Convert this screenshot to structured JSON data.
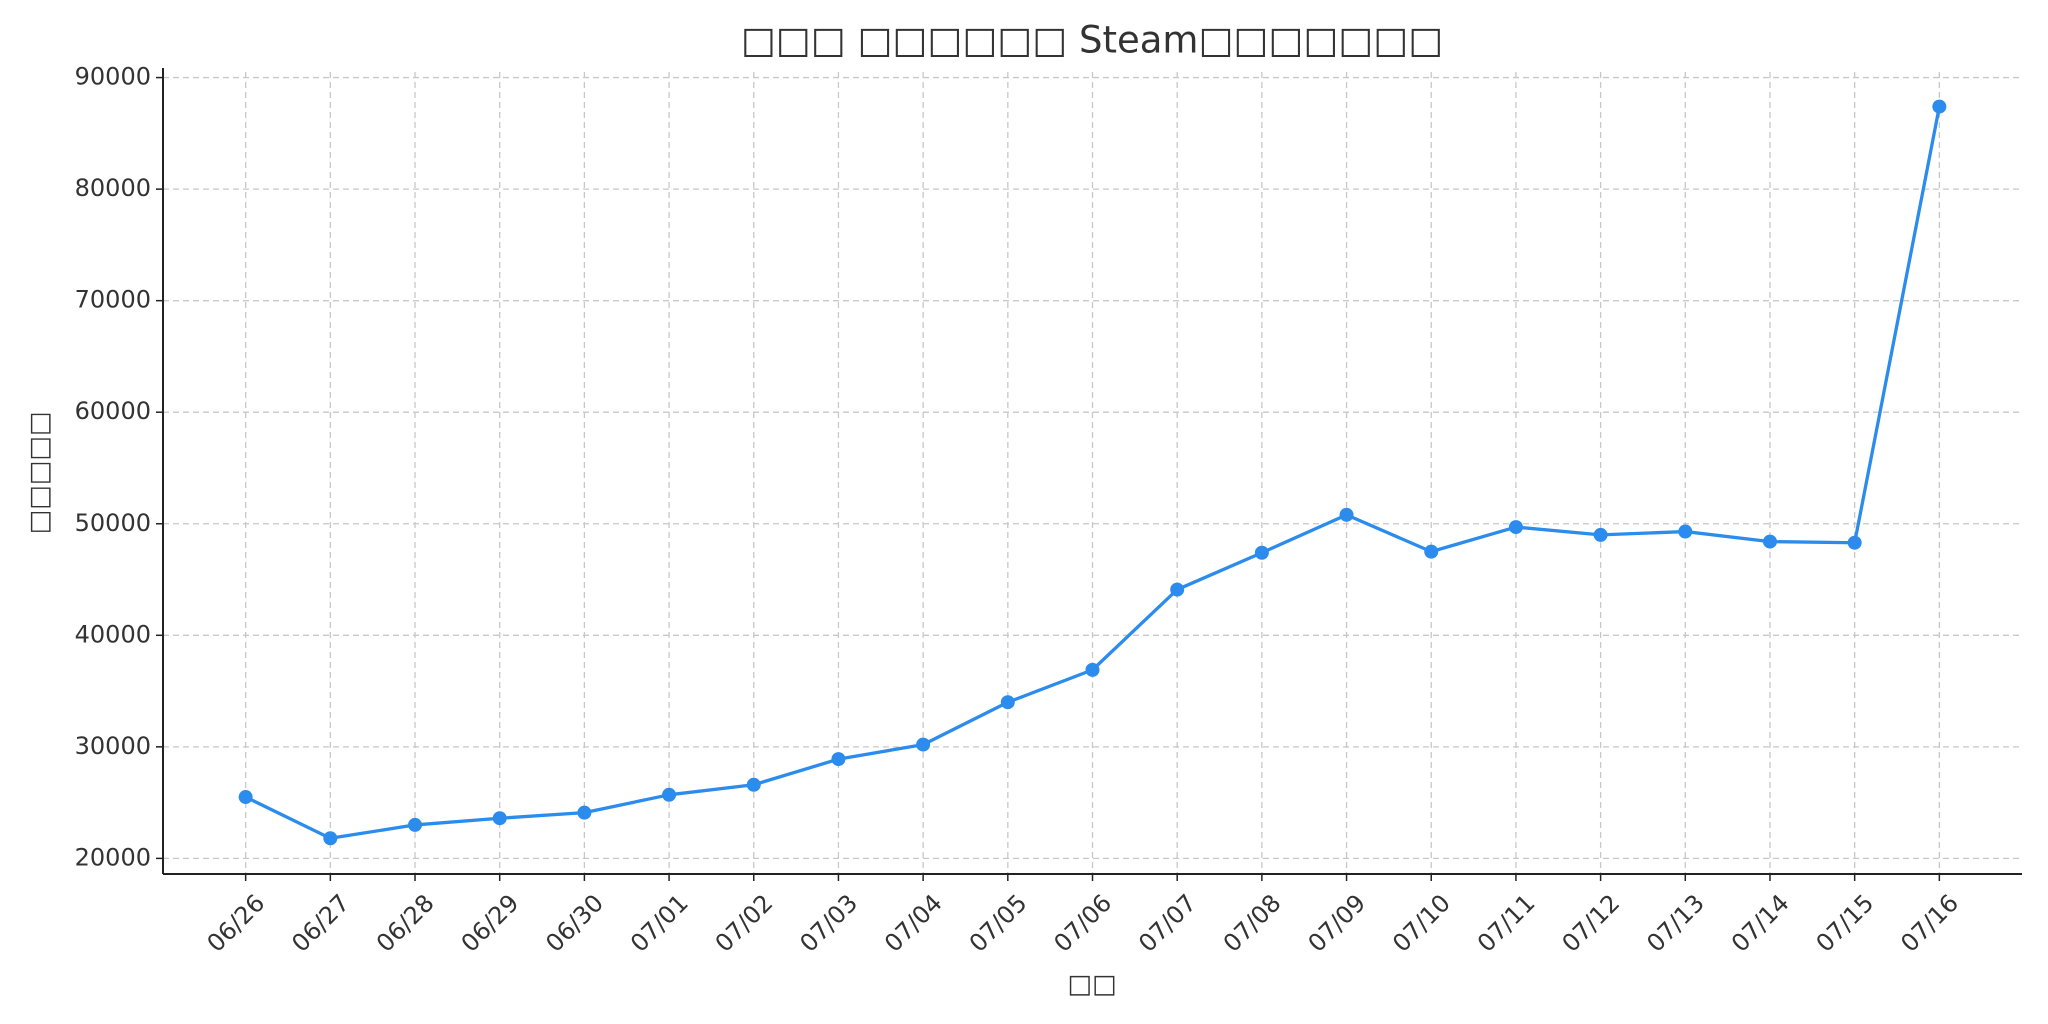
{
  "chart_data": {
    "type": "line",
    "title": "□□□ □□□□□□ Steam□□□□□□□",
    "x_label": "□□",
    "y_label": "□□□□□",
    "categories": [
      "06/26",
      "06/27",
      "06/28",
      "06/29",
      "06/30",
      "07/01",
      "07/02",
      "07/03",
      "07/04",
      "07/05",
      "07/06",
      "07/07",
      "07/08",
      "07/09",
      "07/10",
      "07/11",
      "07/12",
      "07/13",
      "07/14",
      "07/15",
      "07/16"
    ],
    "series": [
      {
        "color": "#2b8ced",
        "values": [
          25500,
          21800,
          23000,
          23600,
          24100,
          25700,
          26600,
          28900,
          30200,
          34000,
          36900,
          44100,
          47400,
          50800,
          47500,
          49700,
          49000,
          49300,
          48400,
          48300,
          87400
        ]
      }
    ],
    "ylim": [
      18600,
      90500
    ],
    "yticks": [
      20000,
      30000,
      40000,
      50000,
      60000,
      70000,
      80000,
      90000
    ],
    "grid": true
  }
}
